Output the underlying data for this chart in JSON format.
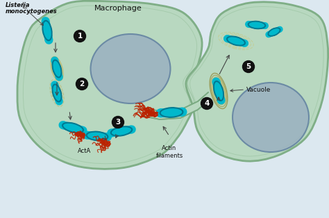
{
  "bg_color": "#dce8f0",
  "cell1_color": "#b8d8c0",
  "cell2_color": "#b8d8c0",
  "cell_border_outer": "#7aaa82",
  "cell_border_inner": "#8ab890",
  "nucleus_color": "#9ab0c0",
  "nucleus_border": "#6080a0",
  "bacteria_fill": "#00b8cc",
  "bacteria_border": "#007890",
  "vacuole_colors": [
    "#c8c880",
    "#b8b870",
    "#a8a860",
    "#989850"
  ],
  "actin_color": "#bb2200",
  "arrow_color": "#444444",
  "step_bg": "#111111",
  "step_text": "#ffffff",
  "label_color": "#111111",
  "title_line1": "Listeria",
  "title_line2": "monocytogenes",
  "macrophage_label": "Macrophage",
  "acta_label": "ActA",
  "actin_label": "Actin\nfilaments",
  "vacuole_label": "Vacuole"
}
